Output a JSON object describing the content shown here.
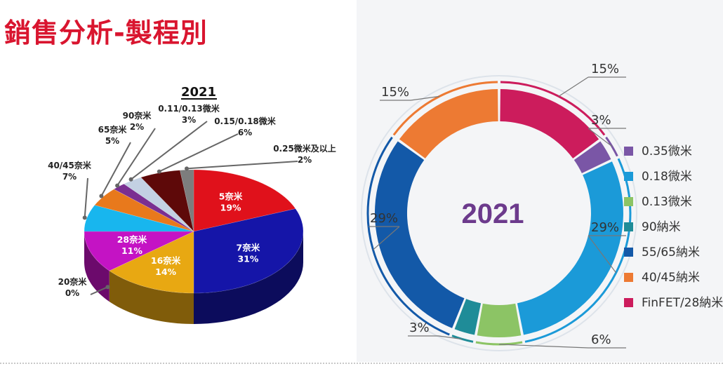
{
  "page_title": "銷售分析-製程別",
  "chart_data": [
    {
      "type": "pie",
      "title": "2021",
      "slices": [
        {
          "label": "5奈米",
          "value": 19,
          "pct_label": "19%",
          "color": "#e0111b",
          "label_inside": true
        },
        {
          "label": "7奈米",
          "value": 31,
          "pct_label": "31%",
          "color": "#1515a8",
          "label_inside": true
        },
        {
          "label": "16奈米",
          "value": 14,
          "pct_label": "14%",
          "color": "#e8a812",
          "label_inside": true
        },
        {
          "label": "20奈米",
          "value": 0,
          "pct_label": "0%",
          "color": "#8c8c8c",
          "label_inside": false
        },
        {
          "label": "28奈米",
          "value": 11,
          "pct_label": "11%",
          "color": "#c413c4",
          "label_inside": true
        },
        {
          "label": "40/45奈米",
          "value": 7,
          "pct_label": "7%",
          "color": "#18b6ee",
          "label_inside": false
        },
        {
          "label": "65奈米",
          "value": 5,
          "pct_label": "5%",
          "color": "#e8791c",
          "label_inside": false
        },
        {
          "label": "90奈米",
          "value": 2,
          "pct_label": "2%",
          "color": "#7a2f91",
          "label_inside": false
        },
        {
          "label": "0.11/0.13微米",
          "value": 3,
          "pct_label": "3%",
          "color": "#c3d1e3",
          "label_inside": false
        },
        {
          "label": "0.15/0.18微米",
          "value": 6,
          "pct_label": "6%",
          "color": "#5e0909",
          "label_inside": false
        },
        {
          "label": "0.25微米及以上",
          "value": 2,
          "pct_label": "2%",
          "color": "#7d7d7d",
          "label_inside": false
        }
      ]
    },
    {
      "type": "pie",
      "title": "2021",
      "slices": [
        {
          "label": "FinFET/28納米",
          "value": 15,
          "pct_label": "15%",
          "color": "#cc1c5c"
        },
        {
          "label": "0.35微米",
          "value": 3,
          "pct_label": "3%",
          "color": "#7a56a6"
        },
        {
          "label": "0.18微米",
          "value": 29,
          "pct_label": "29%",
          "color": "#1b9ad8"
        },
        {
          "label": "0.13微米",
          "value": 6,
          "pct_label": "6%",
          "color": "#8cc465"
        },
        {
          "label": "90納米",
          "value": 3,
          "pct_label": "3%",
          "color": "#1f8c98"
        },
        {
          "label": "55/65納米",
          "value": 29,
          "pct_label": "29%",
          "color": "#1359a8"
        },
        {
          "label": "40/45納米",
          "value": 15,
          "pct_label": "15%",
          "color": "#ed7a33"
        }
      ],
      "legend": [
        "0.35微米",
        "0.18微米",
        "0.13微米",
        "90納米",
        "55/65納米",
        "40/45納米",
        "FinFET/28納米"
      ],
      "legend_colors": [
        "#7a56a6",
        "#1b9ad8",
        "#8cc465",
        "#1f8c98",
        "#1359a8",
        "#ed7a33",
        "#cc1c5c"
      ],
      "legend_position": "right"
    }
  ]
}
